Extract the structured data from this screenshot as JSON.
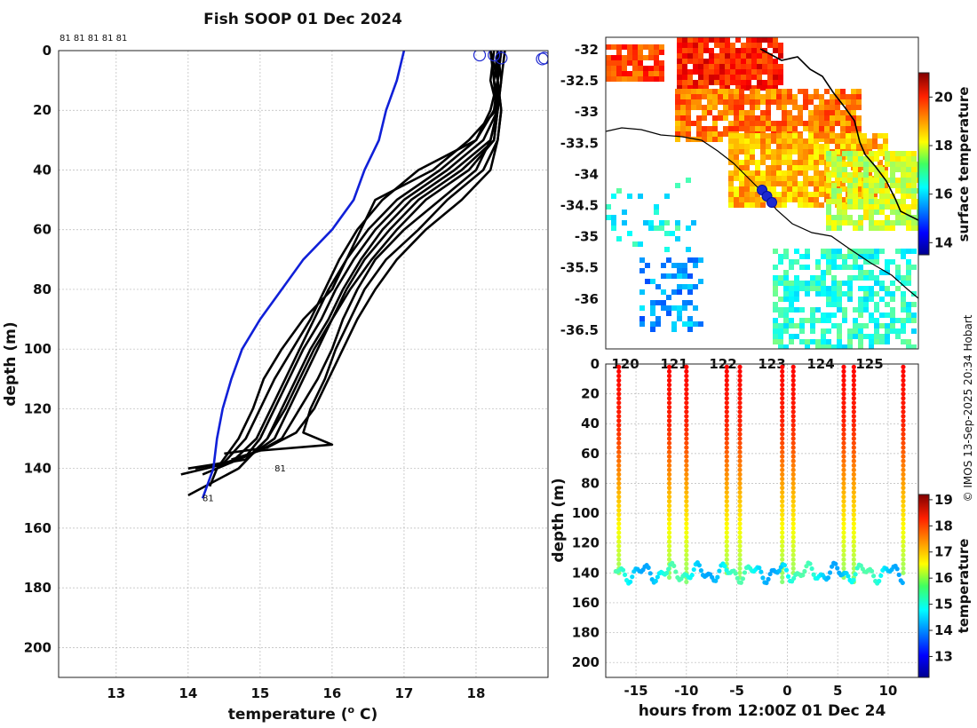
{
  "colors": {
    "climatology": "#1020d8",
    "profiles": "#000000",
    "markers": "#1d28d0"
  },
  "chart_data": [
    {
      "type": "line",
      "title": "Fish SOOP 01 Dec 2024",
      "xlabel": "temperature (",
      "xlabel_sup": "o",
      "xlabel_end": " C)",
      "ylabel": "depth (m)",
      "xlim": [
        12.2,
        19.0
      ],
      "ylim": [
        210,
        0
      ],
      "xticks": [
        13,
        14,
        15,
        16,
        17,
        18
      ],
      "yticks": [
        0,
        20,
        40,
        60,
        80,
        100,
        120,
        140,
        160,
        180,
        200
      ],
      "grid": true,
      "top_tag": "81 81 81 81 81",
      "depth_tags": [
        {
          "text": "81",
          "temp": 15.2,
          "depth": 141
        },
        {
          "text": "81",
          "temp": 14.2,
          "depth": 151
        }
      ],
      "climatology": {
        "name": "climatology",
        "points": [
          [
            17.0,
            0
          ],
          [
            16.9,
            10
          ],
          [
            16.75,
            20
          ],
          [
            16.65,
            30
          ],
          [
            16.45,
            40
          ],
          [
            16.3,
            50
          ],
          [
            16.0,
            60
          ],
          [
            15.6,
            70
          ],
          [
            15.3,
            80
          ],
          [
            15.0,
            90
          ],
          [
            14.75,
            100
          ],
          [
            14.6,
            110
          ],
          [
            14.48,
            120
          ],
          [
            14.4,
            130
          ],
          [
            14.35,
            140
          ],
          [
            14.2,
            150
          ]
        ]
      },
      "profiles": [
        {
          "points": [
            [
              18.3,
              0
            ],
            [
              18.25,
              10
            ],
            [
              18.28,
              20
            ],
            [
              17.9,
              30
            ],
            [
              17.4,
              40
            ],
            [
              16.6,
              50
            ],
            [
              16.4,
              60
            ],
            [
              16.2,
              70
            ],
            [
              16.0,
              80
            ],
            [
              15.6,
              90
            ],
            [
              15.3,
              100
            ],
            [
              15.05,
              110
            ],
            [
              14.9,
              120
            ],
            [
              14.7,
              130
            ],
            [
              14.4,
              140
            ],
            [
              14.3,
              146
            ]
          ]
        },
        {
          "points": [
            [
              18.2,
              0
            ],
            [
              18.3,
              10
            ],
            [
              18.2,
              20
            ],
            [
              18.0,
              30
            ],
            [
              17.2,
              40
            ],
            [
              16.7,
              50
            ],
            [
              16.35,
              60
            ],
            [
              16.1,
              70
            ],
            [
              15.9,
              80
            ],
            [
              15.7,
              90
            ],
            [
              15.45,
              100
            ],
            [
              15.2,
              110
            ],
            [
              15.0,
              120
            ],
            [
              14.8,
              130
            ],
            [
              14.5,
              138
            ],
            [
              14.1,
              140
            ]
          ]
        },
        {
          "points": [
            [
              18.35,
              0
            ],
            [
              18.3,
              10
            ],
            [
              18.3,
              20
            ],
            [
              18.1,
              30
            ],
            [
              17.6,
              40
            ],
            [
              17.0,
              50
            ],
            [
              16.6,
              60
            ],
            [
              16.3,
              70
            ],
            [
              16.05,
              80
            ],
            [
              15.85,
              90
            ],
            [
              15.6,
              100
            ],
            [
              15.4,
              110
            ],
            [
              15.2,
              120
            ],
            [
              15.0,
              130
            ],
            [
              14.8,
              136
            ],
            [
              14.2,
              142
            ]
          ]
        },
        {
          "points": [
            [
              18.25,
              0
            ],
            [
              18.2,
              10
            ],
            [
              18.3,
              20
            ],
            [
              18.25,
              30
            ],
            [
              17.8,
              40
            ],
            [
              17.2,
              50
            ],
            [
              16.8,
              60
            ],
            [
              16.45,
              70
            ],
            [
              16.2,
              80
            ],
            [
              16.0,
              90
            ],
            [
              15.8,
              100
            ],
            [
              15.6,
              110
            ],
            [
              15.4,
              120
            ],
            [
              15.2,
              130
            ],
            [
              14.9,
              135
            ],
            [
              14.4,
              139
            ]
          ]
        },
        {
          "points": [
            [
              18.3,
              0
            ],
            [
              18.35,
              10
            ],
            [
              18.3,
              20
            ],
            [
              18.2,
              30
            ],
            [
              18.0,
              40
            ],
            [
              17.5,
              50
            ],
            [
              17.0,
              60
            ],
            [
              16.6,
              70
            ],
            [
              16.35,
              80
            ],
            [
              16.15,
              90
            ],
            [
              16.0,
              100
            ],
            [
              15.8,
              110
            ],
            [
              15.55,
              120
            ],
            [
              15.3,
              130
            ],
            [
              15.0,
              134
            ],
            [
              14.6,
              137
            ]
          ]
        },
        {
          "points": [
            [
              18.3,
              0
            ],
            [
              18.3,
              10
            ],
            [
              18.35,
              20
            ],
            [
              18.3,
              30
            ],
            [
              18.2,
              40
            ],
            [
              17.8,
              50
            ],
            [
              17.3,
              60
            ],
            [
              16.9,
              70
            ],
            [
              16.6,
              80
            ],
            [
              16.35,
              90
            ],
            [
              16.15,
              100
            ],
            [
              15.95,
              110
            ],
            [
              15.75,
              120
            ],
            [
              15.5,
              128
            ],
            [
              15.1,
              133
            ],
            [
              14.5,
              135
            ]
          ]
        },
        {
          "points": [
            [
              18.2,
              0
            ],
            [
              18.25,
              10
            ],
            [
              18.3,
              20
            ],
            [
              18.25,
              30
            ],
            [
              17.9,
              40
            ],
            [
              17.3,
              50
            ],
            [
              16.9,
              60
            ],
            [
              16.55,
              70
            ],
            [
              16.25,
              80
            ],
            [
              16.0,
              90
            ],
            [
              15.75,
              100
            ],
            [
              15.55,
              110
            ],
            [
              15.35,
              120
            ],
            [
              15.1,
              130
            ],
            [
              14.8,
              137
            ],
            [
              14.0,
              140
            ]
          ]
        },
        {
          "points": [
            [
              18.35,
              0
            ],
            [
              18.3,
              10
            ],
            [
              18.25,
              20
            ],
            [
              18.0,
              30
            ],
            [
              17.5,
              40
            ],
            [
              16.9,
              50
            ],
            [
              16.5,
              60
            ],
            [
              16.2,
              70
            ],
            [
              15.95,
              80
            ],
            [
              15.75,
              90
            ],
            [
              15.55,
              100
            ],
            [
              15.35,
              110
            ],
            [
              15.15,
              120
            ],
            [
              14.95,
              130
            ],
            [
              14.6,
              138
            ],
            [
              13.9,
              142
            ]
          ]
        },
        {
          "points": [
            [
              18.4,
              0
            ],
            [
              18.35,
              10
            ],
            [
              18.3,
              20
            ],
            [
              18.2,
              30
            ],
            [
              17.7,
              40
            ],
            [
              17.1,
              50
            ],
            [
              16.7,
              60
            ],
            [
              16.4,
              70
            ],
            [
              16.15,
              80
            ],
            [
              15.95,
              90
            ],
            [
              15.7,
              100
            ],
            [
              15.5,
              110
            ],
            [
              15.3,
              120
            ],
            [
              15.1,
              130
            ],
            [
              14.7,
              140
            ],
            [
              14.0,
              149
            ]
          ]
        },
        {
          "points": [
            [
              18.3,
              0
            ],
            [
              18.3,
              10
            ],
            [
              18.35,
              20
            ],
            [
              18.3,
              30
            ],
            [
              18.1,
              40
            ],
            [
              17.6,
              50
            ],
            [
              17.2,
              60
            ],
            [
              16.75,
              70
            ],
            [
              16.45,
              80
            ],
            [
              16.25,
              90
            ],
            [
              16.05,
              100
            ],
            [
              15.9,
              110
            ],
            [
              15.7,
              120
            ],
            [
              15.6,
              128
            ],
            [
              16.0,
              132
            ],
            [
              15.0,
              134
            ]
          ]
        }
      ],
      "surface_markers": [
        [
          18.05,
          1.5
        ],
        [
          18.25,
          1.5
        ],
        [
          18.35,
          2.5
        ],
        [
          18.95,
          2.5
        ],
        [
          18.92,
          2.8
        ]
      ]
    },
    {
      "type": "heatmap",
      "colorbar_label": "surface temperature",
      "colorbar_range": [
        13.5,
        21.0
      ],
      "colorbar_ticks": [
        14,
        16,
        18,
        20
      ],
      "ylim": [
        -36.8,
        -31.8
      ],
      "yticks": [
        -32,
        -32.5,
        -33,
        -33.5,
        -34,
        -34.5,
        -35,
        -35.5,
        -36,
        -36.5
      ],
      "xlim": [
        119.6,
        126.0
      ],
      "xticks": [
        120,
        121,
        122,
        123,
        124,
        125
      ],
      "track": [
        [
          122.8,
          -34.25
        ],
        [
          122.9,
          -34.35
        ],
        [
          123.0,
          -34.45
        ]
      ]
    },
    {
      "type": "scatter",
      "xlabel": "hours from 12:00Z 01 Dec 24",
      "ylabel": "depth (m)",
      "colorbar_label": "temperature",
      "colorbar_range": [
        12.2,
        19.2
      ],
      "colorbar_ticks": [
        13,
        14,
        15,
        16,
        17,
        18,
        19
      ],
      "xlim": [
        -18,
        13
      ],
      "ylim": [
        210,
        0
      ],
      "xticks": [
        -15,
        -10,
        -5,
        0,
        5,
        10
      ],
      "yticks": [
        0,
        20,
        40,
        60,
        80,
        100,
        120,
        140,
        160,
        180,
        200
      ],
      "casts": [
        -16.7,
        -11.7,
        -10.0,
        -6.0,
        -4.7,
        -0.5,
        0.6,
        5.6,
        6.6,
        11.5
      ]
    }
  ],
  "watermark": "© IMOS 13-Sep-2025 20:34 Hobart"
}
